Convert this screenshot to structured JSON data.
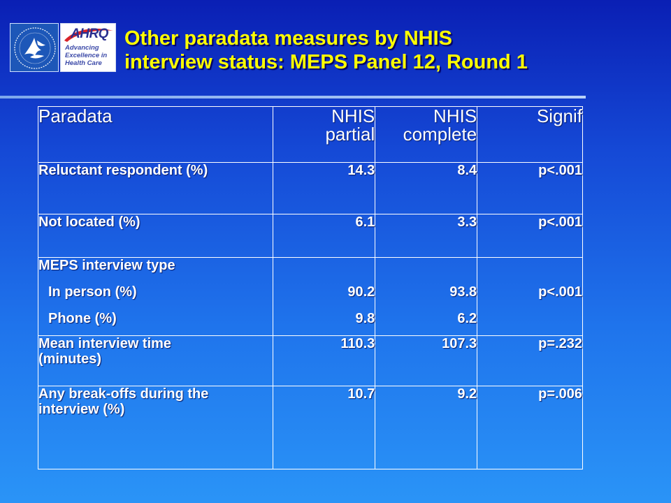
{
  "slide": {
    "title_line1": "Other paradata measures by NHIS",
    "title_line2": "interview status: MEPS Panel 12, Round 1"
  },
  "logos": {
    "hhs": {
      "icon": "hhs-eagle-seal"
    },
    "ahrq": {
      "mark": "AHRQ",
      "tagline_1": "Advancing",
      "tagline_2": "Excellence in",
      "tagline_3": "Health Care"
    }
  },
  "table": {
    "headers": {
      "paradata": "Paradata",
      "partial_line1": "NHIS",
      "partial_line2": "partial",
      "complete_line1": "NHIS",
      "complete_line2": "complete",
      "signif": "Signif"
    },
    "rows": [
      {
        "label": "Reluctant respondent (%)",
        "partial": "14.3",
        "complete": "8.4",
        "signif": "p<.001"
      },
      {
        "label": "Not located (%)",
        "partial": "6.1",
        "complete": "3.3",
        "signif": "p<.001"
      },
      {
        "label": "MEPS interview type",
        "sub1_label": "In person (%)",
        "sub1_partial": "90.2",
        "sub1_complete": "93.8",
        "sub2_label": "Phone (%)",
        "sub2_partial": "9.8",
        "sub2_complete": "6.2",
        "signif": "p<.001"
      },
      {
        "label_line1": "Mean interview time",
        "label_line2": "(minutes)",
        "partial": "110.3",
        "complete": "107.3",
        "signif": "p=.232"
      },
      {
        "label_line1": "Any break-offs during the",
        "label_line2": "interview (%)",
        "partial": "10.7",
        "complete": "9.2",
        "signif": "p=.006"
      }
    ]
  },
  "colors": {
    "title": "#ffff00",
    "background_top": "#0a1fb4",
    "background_bottom": "#2a94f7",
    "text": "#ffffff",
    "grid": "#ffffff"
  }
}
